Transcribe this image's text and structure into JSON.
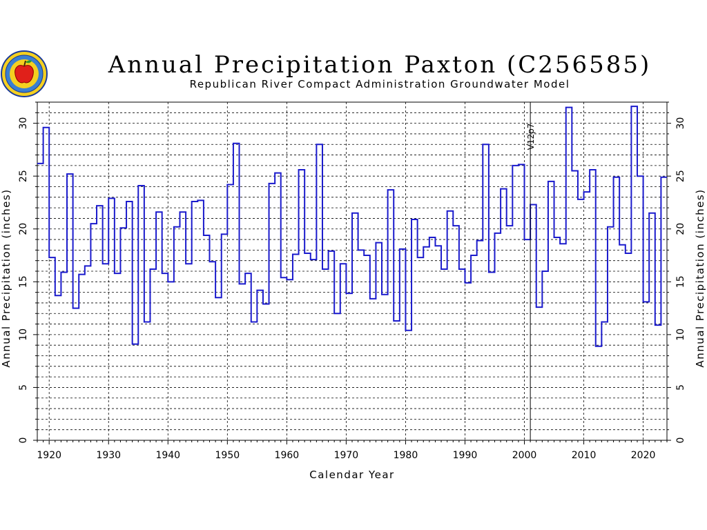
{
  "chart_data": {
    "type": "line",
    "style": "step",
    "title": "Annual Precipitation Paxton (C256585)",
    "subtitle": "Republican River Compact Administration Groundwater Model",
    "xlabel": "Calendar Year",
    "ylabel": "Annual Precipitation (inches)",
    "xlim": [
      1918,
      2024
    ],
    "ylim": [
      0,
      32
    ],
    "x_ticks": [
      1920,
      1930,
      1940,
      1950,
      1960,
      1970,
      1980,
      1990,
      2000,
      2010,
      2020
    ],
    "y_ticks": [
      0,
      5,
      10,
      15,
      20,
      25,
      30
    ],
    "grid": true,
    "line_color": "#1a1acc",
    "annotation": {
      "label": "V12p7",
      "x": 2001
    },
    "x": [
      1918,
      1919,
      1920,
      1921,
      1922,
      1923,
      1924,
      1925,
      1926,
      1927,
      1928,
      1929,
      1930,
      1931,
      1932,
      1933,
      1934,
      1935,
      1936,
      1937,
      1938,
      1939,
      1940,
      1941,
      1942,
      1943,
      1944,
      1945,
      1946,
      1947,
      1948,
      1949,
      1950,
      1951,
      1952,
      1953,
      1954,
      1955,
      1956,
      1957,
      1958,
      1959,
      1960,
      1961,
      1962,
      1963,
      1964,
      1965,
      1966,
      1967,
      1968,
      1969,
      1970,
      1971,
      1972,
      1973,
      1974,
      1975,
      1976,
      1977,
      1978,
      1979,
      1980,
      1981,
      1982,
      1983,
      1984,
      1985,
      1986,
      1987,
      1988,
      1989,
      1990,
      1991,
      1992,
      1993,
      1994,
      1995,
      1996,
      1997,
      1998,
      1999,
      2000,
      2001,
      2002,
      2003,
      2004,
      2005,
      2006,
      2007,
      2008,
      2009,
      2010,
      2011,
      2012,
      2013,
      2014,
      2015,
      2016,
      2017,
      2018,
      2019,
      2020,
      2021,
      2022,
      2023
    ],
    "values": [
      26.2,
      29.6,
      17.3,
      13.7,
      15.9,
      25.2,
      12.5,
      15.7,
      16.5,
      20.5,
      22.2,
      16.7,
      22.9,
      15.8,
      20.1,
      22.6,
      9.1,
      24.1,
      11.2,
      16.2,
      21.6,
      15.8,
      15.0,
      20.2,
      21.6,
      16.7,
      22.6,
      22.7,
      19.4,
      16.9,
      13.5,
      19.5,
      24.2,
      28.1,
      14.8,
      15.8,
      11.2,
      14.2,
      12.9,
      24.3,
      25.3,
      15.4,
      15.2,
      17.6,
      25.6,
      17.7,
      17.1,
      28.0,
      16.2,
      17.9,
      12.0,
      16.7,
      13.9,
      21.5,
      18.0,
      17.5,
      13.4,
      18.7,
      13.8,
      23.7,
      11.3,
      18.1,
      10.4,
      20.9,
      17.3,
      18.3,
      19.2,
      18.4,
      16.2,
      21.7,
      20.3,
      16.2,
      14.9,
      17.5,
      18.9,
      28.0,
      15.9,
      19.6,
      23.8,
      20.3,
      26.0,
      26.1,
      19.0,
      22.3,
      12.6,
      16.0,
      24.5,
      19.2,
      18.6,
      31.5,
      25.5,
      22.8,
      23.5,
      25.6,
      8.9,
      11.2,
      20.2,
      24.9,
      18.5,
      17.7,
      31.6,
      25.0,
      13.1,
      21.5,
      10.9,
      24.9
    ]
  }
}
